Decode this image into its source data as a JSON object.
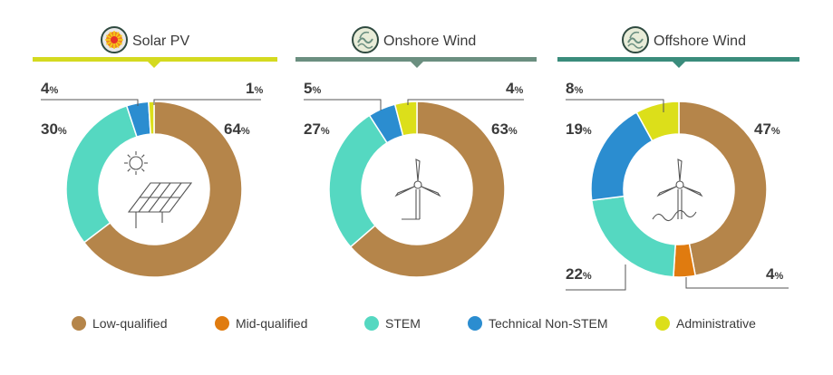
{
  "colors": {
    "Low-qualified": "#b5854a",
    "Mid-qualified": "#e07b0f",
    "STEM": "#55d8c1",
    "Technical Non-STEM": "#2b8dd0",
    "Administrative": "#dcdf1a"
  },
  "legend": [
    {
      "label": "Low-qualified",
      "color": "#b5854a"
    },
    {
      "label": "Mid-qualified",
      "color": "#e07b0f"
    },
    {
      "label": "STEM",
      "color": "#55d8c1"
    },
    {
      "label": "Technical Non-STEM",
      "color": "#2b8dd0"
    },
    {
      "label": "Administrative",
      "color": "#dcdf1a"
    }
  ],
  "panels": [
    {
      "title": "Solar PV",
      "icon": "sun-icon",
      "center_icon": "solar-panel-icon",
      "bar_color": "#d4da1f"
    },
    {
      "title": "Onshore Wind",
      "icon": "onshore-wind-icon",
      "center_icon": "wind-turbine-icon",
      "bar_color": "#6b8f80"
    },
    {
      "title": "Offshore Wind",
      "icon": "offshore-wind-icon",
      "center_icon": "offshore-turbine-icon",
      "bar_color": "#3a8c7c"
    }
  ],
  "chart_data": [
    {
      "type": "pie",
      "title": "Solar PV",
      "slices": [
        {
          "label": "Low-qualified",
          "value": 64
        },
        {
          "label": "Mid-qualified",
          "value": 0
        },
        {
          "label": "STEM",
          "value": 30
        },
        {
          "label": "Technical Non-STEM",
          "value": 4
        },
        {
          "label": "Administrative",
          "value": 1
        }
      ],
      "value_labels": [
        {
          "category": "Low-qualified",
          "text": "64",
          "unit": "%"
        },
        {
          "category": "STEM",
          "text": "30",
          "unit": "%"
        },
        {
          "category": "Technical Non-STEM",
          "text": "4",
          "unit": "%"
        },
        {
          "category": "Administrative",
          "text": "1",
          "unit": "%"
        }
      ]
    },
    {
      "type": "pie",
      "title": "Onshore Wind",
      "slices": [
        {
          "label": "Low-qualified",
          "value": 63
        },
        {
          "label": "Mid-qualified",
          "value": 0
        },
        {
          "label": "STEM",
          "value": 27
        },
        {
          "label": "Technical Non-STEM",
          "value": 5
        },
        {
          "label": "Administrative",
          "value": 4
        }
      ],
      "value_labels": [
        {
          "category": "Low-qualified",
          "text": "63",
          "unit": "%"
        },
        {
          "category": "STEM",
          "text": "27",
          "unit": "%"
        },
        {
          "category": "Technical Non-STEM",
          "text": "5",
          "unit": "%"
        },
        {
          "category": "Administrative",
          "text": "4",
          "unit": "%"
        }
      ]
    },
    {
      "type": "pie",
      "title": "Offshore Wind",
      "slices": [
        {
          "label": "Low-qualified",
          "value": 47
        },
        {
          "label": "Mid-qualified",
          "value": 4
        },
        {
          "label": "STEM",
          "value": 22
        },
        {
          "label": "Technical Non-STEM",
          "value": 19
        },
        {
          "label": "Administrative",
          "value": 8
        }
      ],
      "value_labels": [
        {
          "category": "Low-qualified",
          "text": "47",
          "unit": "%"
        },
        {
          "category": "Mid-qualified",
          "text": "4",
          "unit": "%"
        },
        {
          "category": "STEM",
          "text": "22",
          "unit": "%"
        },
        {
          "category": "Technical Non-STEM",
          "text": "19",
          "unit": "%"
        },
        {
          "category": "Administrative",
          "text": "8",
          "unit": "%"
        }
      ]
    }
  ]
}
